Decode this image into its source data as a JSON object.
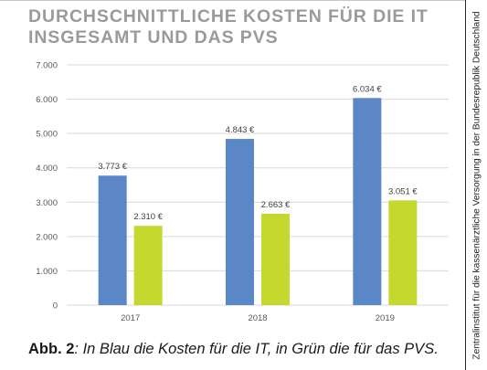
{
  "title": "DURCHSCHNITTLICHE KOSTEN FÜR DIE IT INSGESAMT UND DAS PVS",
  "caption": {
    "lead": "Abb. 2",
    "text": ": In Blau die Kosten für die IT, in Grün die für das PVS."
  },
  "side_text": "Zentralinstitut für die kassenärztliche Versorgung in der Bundesrepublik Deutschland",
  "chart_data": {
    "type": "bar",
    "categories": [
      "2017",
      "2018",
      "2019"
    ],
    "series": [
      {
        "values": [
          3773,
          4843,
          6034
        ],
        "labels": [
          "3.773 €",
          "4.843 €",
          "6.034 €"
        ],
        "color": "#5b87c7"
      },
      {
        "values": [
          2310,
          2663,
          3051
        ],
        "labels": [
          "2.310 €",
          "2.663 €",
          "3.051 €"
        ],
        "color": "#c4d82e"
      }
    ],
    "ylim": [
      0,
      7000
    ],
    "yticks": [
      0,
      1000,
      2000,
      3000,
      4000,
      5000,
      6000,
      7000
    ],
    "ytick_labels": [
      "0",
      "1.000",
      "2.000",
      "3.000",
      "4.000",
      "5.000",
      "6.000",
      "7.000"
    ],
    "grid": true,
    "grid_color": "#d9d9d9"
  }
}
